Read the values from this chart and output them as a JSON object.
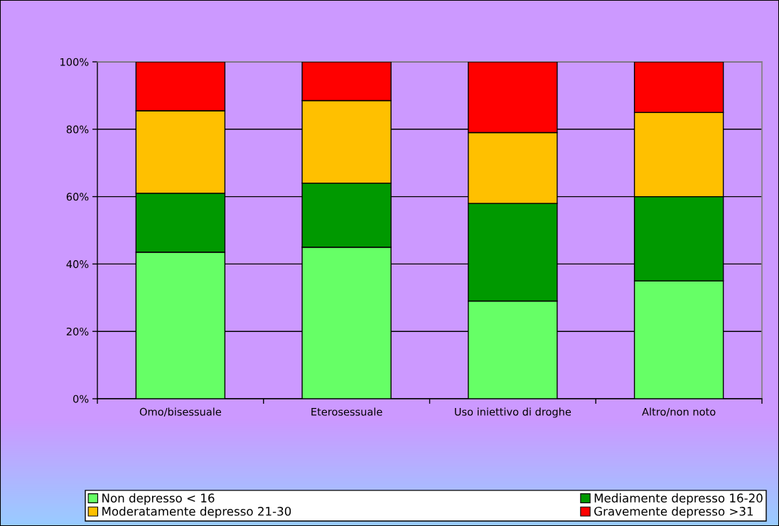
{
  "chart_data": {
    "type": "bar",
    "stacked": true,
    "categories": [
      "Omo/bisessuale",
      "Eterosessuale",
      "Uso iniettivo di droghe",
      "Altro/non noto"
    ],
    "series": [
      {
        "name": "Non depresso < 16",
        "color": "#66ff66",
        "values": [
          43.5,
          45,
          29,
          35
        ]
      },
      {
        "name": "Mediamente depresso 16-20",
        "color": "#009900",
        "values": [
          17.5,
          19,
          29,
          25
        ]
      },
      {
        "name": "Moderatamente depresso 21-30",
        "color": "#ffc000",
        "values": [
          24.5,
          24.5,
          21,
          25
        ]
      },
      {
        "name": "Gravemente depresso >31",
        "color": "#ff0000",
        "values": [
          14.5,
          11.5,
          21,
          15
        ]
      }
    ],
    "ylim": [
      0,
      100
    ],
    "yticks": [
      {
        "value": 0,
        "label": "0%"
      },
      {
        "value": 20,
        "label": "20%"
      },
      {
        "value": 40,
        "label": "40%"
      },
      {
        "value": 60,
        "label": "60%"
      },
      {
        "value": 80,
        "label": "80%"
      },
      {
        "value": 100,
        "label": "100%"
      }
    ],
    "grid": "y",
    "legend": "bottom"
  }
}
